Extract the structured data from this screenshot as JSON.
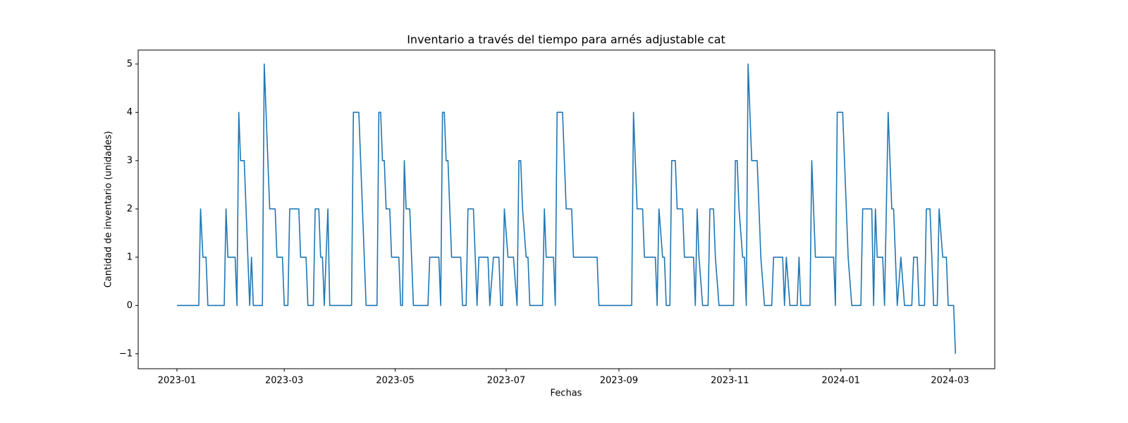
{
  "chart_data": {
    "type": "line",
    "title": "Inventario a través del tiempo para arnés adjustable cat",
    "xlabel": "Fechas",
    "ylabel": "Cantidad de inventario (unidades)",
    "color": "#1f77b4",
    "x": [
      0,
      12,
      13,
      14.3,
      16,
      17,
      26,
      27,
      28,
      32,
      33,
      34,
      35,
      37,
      40,
      41,
      42,
      47,
      48,
      51,
      54,
      55,
      58,
      59,
      61,
      62,
      67,
      68,
      71,
      72,
      75,
      76,
      78,
      79,
      80,
      81,
      83,
      84,
      96,
      97,
      100,
      104,
      110,
      111,
      112,
      113,
      114,
      115,
      117,
      118,
      122,
      123,
      124,
      125,
      126,
      128,
      130,
      138,
      139,
      144,
      145,
      146,
      147,
      148,
      149,
      151,
      156,
      157,
      159,
      160,
      163,
      165,
      166,
      171,
      172,
      174,
      177,
      178,
      179,
      180,
      182,
      185,
      187,
      188,
      189,
      190,
      192,
      193,
      194,
      201,
      202,
      203,
      207,
      208,
      209,
      212,
      214,
      217,
      218,
      231,
      232,
      250,
      251,
      253,
      256,
      257,
      263,
      264,
      265,
      267,
      268,
      269,
      271,
      272,
      274,
      275,
      278,
      279,
      284,
      285,
      286,
      287,
      289,
      292,
      293,
      295,
      296,
      298,
      306,
      307,
      308,
      309,
      311,
      312,
      313,
      314,
      315,
      316,
      319,
      320,
      321,
      323,
      327,
      328,
      333,
      334,
      335,
      337,
      341,
      342,
      343,
      348,
      349,
      351,
      361,
      362,
      363,
      366,
      369,
      371,
      376,
      377,
      382,
      383,
      384,
      385,
      388,
      389,
      391,
      393,
      394,
      396,
      398,
      400,
      404,
      405,
      407,
      408,
      411,
      412,
      414,
      416,
      418,
      419,
      421,
      423,
      424,
      427,
      428
    ],
    "values": [
      0,
      0,
      2,
      1,
      1,
      0,
      0,
      2,
      1,
      1,
      0,
      4,
      3,
      3,
      0,
      1,
      0,
      0,
      5,
      2,
      2,
      1,
      1,
      0,
      0,
      2,
      2,
      1,
      1,
      0,
      0,
      2,
      2,
      1,
      1,
      0,
      2,
      0,
      0,
      4,
      4,
      0,
      0,
      4,
      4,
      3,
      3,
      2,
      2,
      1,
      1,
      0,
      0,
      3,
      2,
      2,
      0,
      0,
      1,
      1,
      0,
      4,
      4,
      3,
      3,
      1,
      1,
      0,
      0,
      2,
      2,
      0,
      1,
      1,
      0,
      1,
      1,
      0,
      0,
      2,
      1,
      1,
      0,
      3,
      3,
      2,
      1,
      1,
      0,
      0,
      2,
      1,
      1,
      0,
      4,
      4,
      2,
      2,
      1,
      1,
      0,
      0,
      4,
      2,
      2,
      1,
      1,
      0,
      2,
      1,
      1,
      0,
      0,
      3,
      3,
      2,
      2,
      1,
      1,
      0,
      2,
      1,
      0,
      0,
      2,
      2,
      1,
      0,
      0,
      3,
      3,
      2,
      1,
      1,
      0,
      5,
      4,
      3,
      3,
      2,
      1,
      0,
      0,
      1,
      1,
      0,
      1,
      0,
      0,
      1,
      0,
      0,
      3,
      1,
      1,
      0,
      4,
      4,
      1,
      0,
      0,
      2,
      2,
      0,
      2,
      1,
      1,
      0,
      4,
      2,
      2,
      0,
      1,
      0,
      0,
      1,
      1,
      0,
      0,
      2,
      2,
      0,
      0,
      2,
      1,
      1,
      0,
      0,
      -1
    ],
    "xlim": [
      -21.3,
      449.6
    ],
    "ylim": [
      -1.31,
      5.29
    ],
    "xticks": [
      {
        "value": 0,
        "label": "2023-01"
      },
      {
        "value": 59,
        "label": "2023-03"
      },
      {
        "value": 120,
        "label": "2023-05"
      },
      {
        "value": 181,
        "label": "2023-07"
      },
      {
        "value": 243,
        "label": "2023-09"
      },
      {
        "value": 304,
        "label": "2023-11"
      },
      {
        "value": 365,
        "label": "2024-01"
      },
      {
        "value": 425,
        "label": "2024-03"
      }
    ],
    "yticks": [
      {
        "value": -1,
        "label": "−1"
      },
      0,
      1,
      2,
      3,
      4,
      5
    ],
    "grid": false
  }
}
